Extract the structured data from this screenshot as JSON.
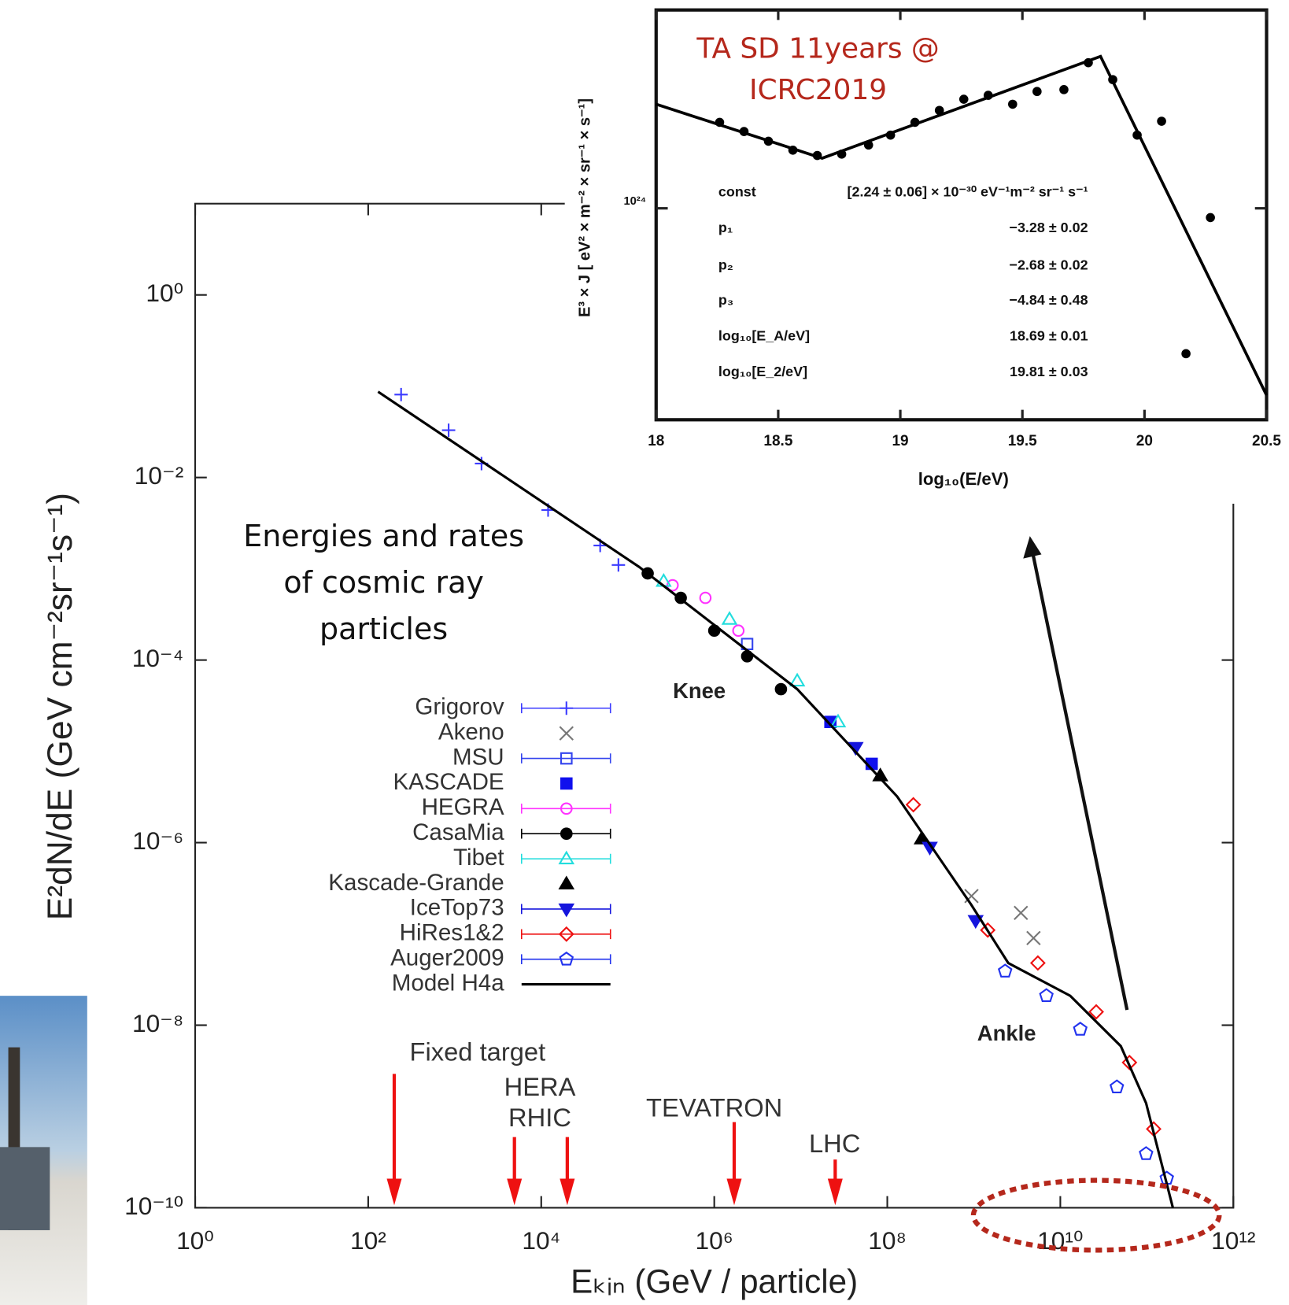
{
  "chart_data": [
    {
      "type": "scatter",
      "x_label": "Eₖᵢₙ   (GeV / particle)",
      "y_label": "E²dN/dE   (GeV cm⁻²sr⁻¹s⁻¹)",
      "log_x": true,
      "log_y": true,
      "grid": false,
      "legend": "center-left",
      "xlim": [
        1,
        1000000000000.0
      ],
      "ylim": [
        1e-10,
        10
      ],
      "xticks": [
        {
          "value": 1,
          "label": "10⁰"
        },
        {
          "value": 100,
          "label": "10²"
        },
        {
          "value": 10000,
          "label": "10⁴"
        },
        {
          "value": 1000000.0,
          "label": "10⁶"
        },
        {
          "value": 100000000.0,
          "label": "10⁸"
        },
        {
          "value": 10000000000.0,
          "label": "10¹⁰"
        },
        {
          "value": 1000000000000.0,
          "label": "10¹²"
        }
      ],
      "yticks": [
        {
          "value": 1e-10,
          "label": "10⁻¹⁰"
        },
        {
          "value": 1e-08,
          "label": "10⁻⁸"
        },
        {
          "value": 1e-06,
          "label": "10⁻⁶"
        },
        {
          "value": 0.0001,
          "label": "10⁻⁴"
        },
        {
          "value": 0.01,
          "label": "10⁻²"
        },
        {
          "value": 1,
          "label": "10⁰"
        }
      ],
      "series": [
        {
          "name": "Grigorov",
          "color": "#3b3bff",
          "marker": "plus",
          "errorbars": true,
          "x": [
            240,
            850,
            2040,
            12000,
            48000,
            78000
          ],
          "values": [
            0.081,
            0.033,
            0.0142,
            0.0044,
            0.0018,
            0.0011
          ]
        },
        {
          "name": "Akeno",
          "color": "#777777",
          "marker": "cross",
          "errorbars": false,
          "x": [
            940000000.0,
            3500000000.0,
            4900000000.0
          ],
          "values": [
            2.6e-07,
            1.7e-07,
            9e-08
          ]
        },
        {
          "name": "MSU",
          "color": "#3344ee",
          "marker": "square",
          "errorbars": true,
          "x": [
            2400000.0
          ],
          "values": [
            0.00015
          ]
        },
        {
          "name": "KASCADE",
          "color": "#1010ee",
          "marker": "filled-square",
          "errorbars": false,
          "x": [
            22000000.0,
            66000000.0
          ],
          "values": [
            2.1e-05,
            7.3e-06
          ]
        },
        {
          "name": "HEGRA",
          "color": "#ff33ff",
          "marker": "circle",
          "errorbars": true,
          "x": [
            330000.0,
            790000.0,
            1900000.0
          ],
          "values": [
            0.00066,
            0.00048,
            0.00021
          ]
        },
        {
          "name": "CasaMia",
          "color": "#000000",
          "marker": "dot",
          "errorbars": true,
          "x": [
            170000.0,
            410000.0,
            1000000.0,
            2400000.0,
            5900000.0
          ],
          "values": [
            0.00089,
            0.00048,
            0.00021,
            0.00011,
            4.8e-05
          ]
        },
        {
          "name": "Tibet",
          "color": "#22dddd",
          "marker": "triangle",
          "errorbars": true,
          "x": [
            260000.0,
            1500000.0,
            9100000.0,
            27000000.0
          ],
          "values": [
            0.00073,
            0.00028,
            5.9e-05,
            2.1e-05
          ]
        },
        {
          "name": "Kascade-Grande",
          "color": "#000000",
          "marker": "filled-triangle",
          "errorbars": false,
          "x": [
            83000000.0,
            250000000.0
          ],
          "values": [
            5.4e-06,
            1.1e-06
          ]
        },
        {
          "name": "IceTop73",
          "color": "#1515dd",
          "marker": "down-triangle",
          "errorbars": true,
          "x": [
            43000000.0,
            310000000.0,
            1050000000.0
          ],
          "values": [
            1.1e-05,
            8.9e-07,
            1.4e-07
          ]
        },
        {
          "name": "HiRes1&2",
          "color": "#ee1111",
          "marker": "diamond",
          "errorbars": true,
          "x": [
            200000000.0,
            1450000000.0,
            5500000000.0,
            26000000000.0,
            63000000000.0,
            120000000000.0
          ],
          "values": [
            2.6e-06,
            1.1e-07,
            4.8e-08,
            1.4e-08,
            3.9e-09,
            7.3e-10
          ]
        },
        {
          "name": "Auger2009",
          "color": "#2233ee",
          "marker": "pentagon",
          "errorbars": true,
          "x": [
            2300000000.0,
            6900000000.0,
            17000000000.0,
            45000000000.0,
            98000000000.0,
            170000000000.0
          ],
          "values": [
            3.9e-08,
            2.1e-08,
            9e-09,
            2.1e-09,
            3.9e-10,
            2.1e-10
          ]
        },
        {
          "name": "Model H4a",
          "color": "#000000",
          "marker": "line",
          "errorbars": false,
          "x": [
            130,
            135000,
            9100000.0,
            130000000.0,
            930000000.0,
            2500000000.0,
            13000000000.0,
            50000000000.0,
            98000000000.0,
            200000000000.0
          ],
          "values": [
            0.087,
            0.00105,
            4.8e-05,
            3.2e-06,
            2.1e-07,
            4.8e-08,
            2.1e-08,
            5.9e-09,
            1.4e-09,
            1e-10
          ]
        }
      ],
      "accelerators": [
        {
          "label": "Fixed target",
          "energy": 200
        },
        {
          "label": "HERA",
          "energy": 4900
        },
        {
          "label": "RHIC",
          "energy": 20000
        },
        {
          "label": "TEVATRON",
          "energy": 1700000.0
        },
        {
          "label": "LHC",
          "energy": 25000000.0
        }
      ],
      "annotations": {
        "knee": "Knee",
        "ankle": "Ankle",
        "caption_lines": [
          "Energies and rates",
          "of cosmic ray",
          "particles"
        ]
      }
    },
    {
      "type": "scatter",
      "x_label": "log₁₀(E/eV)",
      "y_label": "E³ × J  [ eV² × m⁻² × sr⁻¹ × s⁻¹]",
      "annotation_lines": [
        "TA SD 11years @",
        "ICRC2019"
      ],
      "log_y": true,
      "xlim": [
        18,
        20.5
      ],
      "ylim": [
        3.1e+23,
        3e+24
      ],
      "xticks": [
        18,
        18.5,
        19,
        19.5,
        20,
        20.5
      ],
      "yticks": [
        {
          "value": 1e+24,
          "label": "10²⁴"
        }
      ],
      "color": "#000000",
      "x": [
        18.26,
        18.36,
        18.46,
        18.56,
        18.66,
        18.76,
        18.87,
        18.96,
        19.06,
        19.16,
        19.26,
        19.36,
        19.46,
        19.56,
        19.67,
        19.77,
        19.87,
        19.97,
        20.07,
        20.17,
        20.27
      ],
      "values": [
        1.61e+24,
        1.53e+24,
        1.45e+24,
        1.38e+24,
        1.34e+24,
        1.35e+24,
        1.42e+24,
        1.5e+24,
        1.61e+24,
        1.72e+24,
        1.83e+24,
        1.87e+24,
        1.78e+24,
        1.91e+24,
        1.93e+24,
        2.24e+24,
        2.04e+24,
        1.5e+24,
        1.62e+24,
        4.47e+23,
        9.5e+23
      ],
      "fit_x": [
        18,
        18.68,
        19.82,
        20.5
      ],
      "fit_values": [
        1.78e+24,
        1.32e+24,
        2.32e+24,
        3.55e+23
      ],
      "fit_parameters": [
        {
          "name": "const",
          "value": "[2.24 ± 0.06] × 10⁻³⁰ eV⁻¹m⁻² sr⁻¹ s⁻¹"
        },
        {
          "name": "p₁",
          "value": "−3.28 ± 0.02"
        },
        {
          "name": "p₂",
          "value": "−2.68 ± 0.02"
        },
        {
          "name": "p₃",
          "value": "−4.84 ± 0.48"
        },
        {
          "name": "log₁₀[E_A/eV]",
          "value": "18.69 ± 0.01"
        },
        {
          "name": "log₁₀[E_2/eV]",
          "value": "19.81 ± 0.03"
        }
      ]
    }
  ]
}
